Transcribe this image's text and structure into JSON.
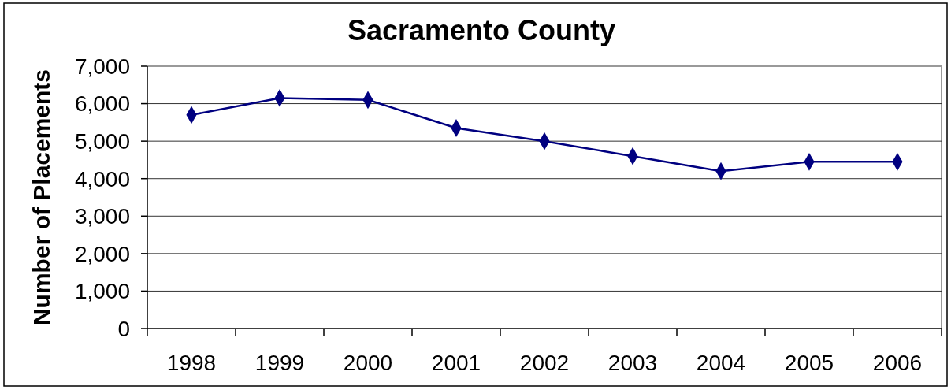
{
  "chart_data": {
    "type": "line",
    "title": "Sacramento County",
    "ylabel": "Number of Placements",
    "categories": [
      "1998",
      "1999",
      "2000",
      "2001",
      "2002",
      "2003",
      "2004",
      "2005",
      "2006"
    ],
    "series": [
      {
        "color": "#000080",
        "values": [
          5700,
          6150,
          6100,
          5350,
          5000,
          4600,
          4200,
          4450,
          4450
        ]
      }
    ],
    "ylim": [
      0,
      7000
    ],
    "yticks": [
      {
        "value": 0,
        "label": "0"
      },
      {
        "value": 1000,
        "label": "1,000"
      },
      {
        "value": 2000,
        "label": "2,000"
      },
      {
        "value": 3000,
        "label": "3,000"
      },
      {
        "value": 4000,
        "label": "4,000"
      },
      {
        "value": 5000,
        "label": "5,000"
      },
      {
        "value": 6000,
        "label": "6,000"
      },
      {
        "value": 7000,
        "label": "7,000"
      }
    ],
    "grid": "y",
    "marker": "diamond"
  }
}
